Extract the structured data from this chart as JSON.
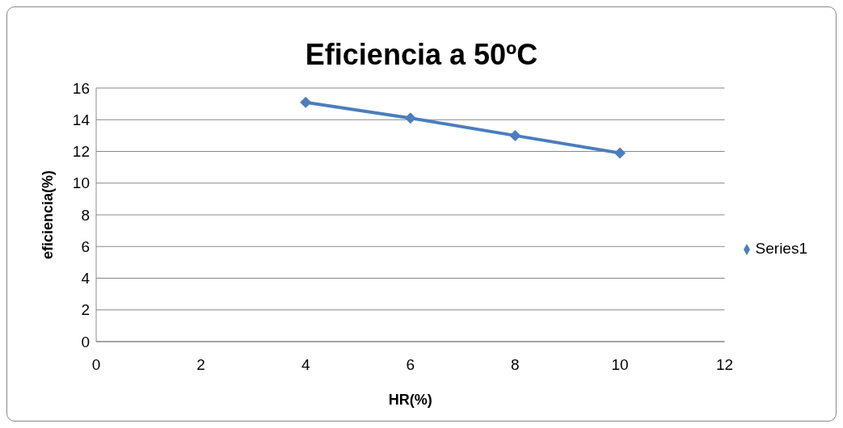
{
  "chart_data": {
    "type": "line",
    "title": "Eficiencia a 50ºC",
    "xlabel": "HR(%)",
    "ylabel": "eficiencia(%)",
    "x": [
      4,
      6,
      8,
      10
    ],
    "series": [
      {
        "name": "Series1",
        "color": "#4a7ebb",
        "values": [
          15.1,
          14.1,
          13.0,
          11.9
        ]
      }
    ],
    "xlim": [
      0,
      12
    ],
    "xticks": [
      0,
      2,
      4,
      6,
      8,
      10,
      12
    ],
    "ylim": [
      0,
      16
    ],
    "yticks": [
      0,
      2,
      4,
      6,
      8,
      10,
      12,
      14,
      16
    ],
    "grid": "y",
    "legend": "right",
    "marker": "diamond",
    "line_style": "solid"
  }
}
